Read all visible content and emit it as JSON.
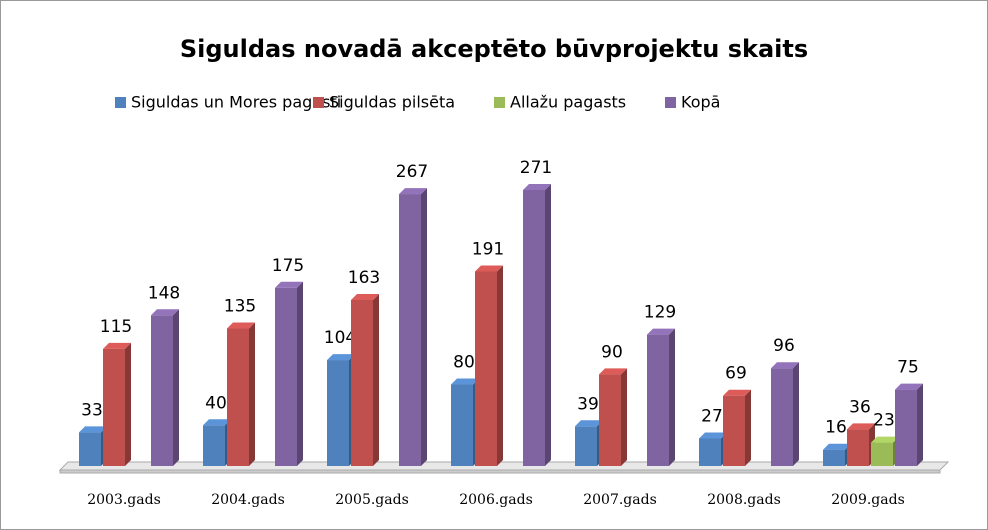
{
  "chart_data": {
    "type": "bar3d",
    "title": "Siguldas novadā akceptēto būvprojektu skaits",
    "categories": [
      "2003.gads",
      "2004.gads",
      "2005.gads",
      "2006.gads",
      "2007.gads",
      "2008.gads",
      "2009.gads"
    ],
    "series": [
      {
        "name": "Siguldas un Mores pagasti",
        "color": "#4f81bd",
        "values": [
          33,
          40,
          104,
          80,
          39,
          27,
          16
        ]
      },
      {
        "name": "Siguldas pilsēta",
        "color": "#c0504d",
        "values": [
          115,
          135,
          163,
          191,
          90,
          69,
          36
        ]
      },
      {
        "name": "Allažu pagasts",
        "color": "#9bbb59",
        "values": [
          null,
          null,
          null,
          null,
          null,
          null,
          23
        ]
      },
      {
        "name": "Kopā",
        "color": "#8064a2",
        "values": [
          148,
          175,
          267,
          271,
          129,
          96,
          75
        ]
      }
    ],
    "legend": "top"
  }
}
